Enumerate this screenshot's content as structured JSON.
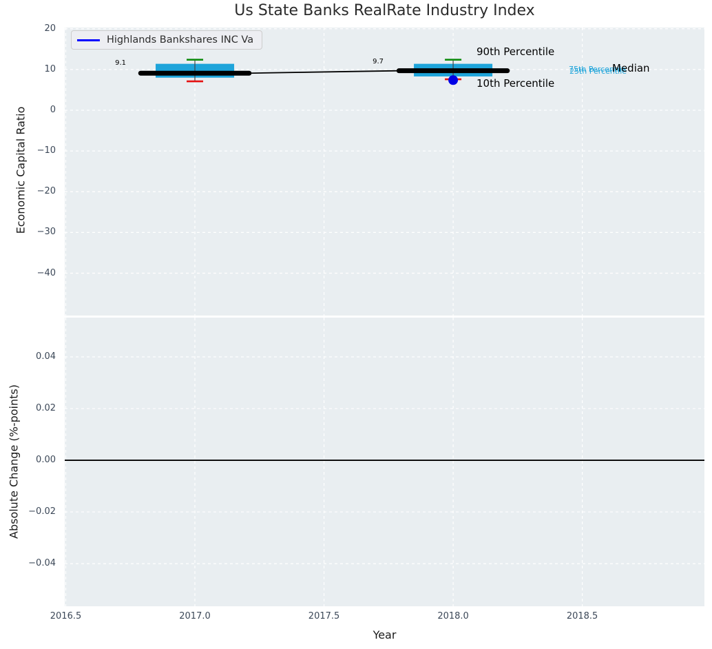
{
  "figure": {
    "title": "Us State Banks RealRate Industry Index"
  },
  "legend": {
    "label": "Highlands Bankshares INC Va"
  },
  "axes": {
    "top": {
      "ylabel": "Economic Capital Ratio",
      "yticks": [
        20,
        10,
        0,
        -10,
        -20,
        -30,
        -40
      ],
      "ytick_labels": [
        "20",
        "10",
        "0",
        "−10",
        "−20",
        "−30",
        "−40"
      ],
      "ylim": [
        -50.4,
        20.3
      ]
    },
    "bottom": {
      "ylabel": "Absolute Change (%-points)",
      "yticks": [
        0.04,
        0.02,
        0,
        -0.02,
        -0.04
      ],
      "ytick_labels": [
        "0.04",
        "0.02",
        "0.00",
        "−0.02",
        "−0.04"
      ],
      "ylim": [
        -0.0565,
        0.0552
      ]
    },
    "x": {
      "label": "Year",
      "ticks": [
        2016.5,
        2017,
        2017.5,
        2018,
        2018.5
      ],
      "tick_labels": [
        "2016.5",
        "2017.0",
        "2017.5",
        "2018.0",
        "2018.5"
      ],
      "xlim": [
        2016.496,
        2018.973
      ],
      "grid_x": [
        2016.5,
        2017,
        2017.5,
        2018,
        2018.5
      ]
    }
  },
  "annotations": {
    "p90": "90th Percentile",
    "p10": "10th Percentile",
    "p75": "75th Percentile",
    "p25": "25th Percentile",
    "median": "Median",
    "median_value_2017": "9.1",
    "median_value_2018": "9.7"
  },
  "colors": {
    "axes_bg": "#e9eef1",
    "grid": "#ffffff",
    "box_fill": "#1ea4da",
    "p90_cap": "#0f8c0f",
    "p10_cap": "#e51010",
    "whisker": "#444444",
    "median_line": "#000000",
    "company_marker": "#0000e6",
    "legend_line": "#0000ff",
    "cyan_label": "#1ea4da",
    "zero_line": "#000000",
    "tick_label": "#3b4757"
  },
  "chart_data": {
    "type": "boxplot",
    "title": "Us State Banks RealRate Industry Index",
    "xlabel": "Year",
    "ylabel": "Economic Capital Ratio",
    "ylabel_secondary": "Absolute Change (%-points)",
    "legend_position": "upper left",
    "grid": true,
    "x": [
      2017,
      2018
    ],
    "industry_percentiles": [
      {
        "year": 2017,
        "p10": 7.1,
        "p25": 8.0,
        "median": 9.1,
        "p75": 11.4,
        "p90": 12.4
      },
      {
        "year": 2018,
        "p10": 7.6,
        "p25": 8.3,
        "median": 9.7,
        "p75": 11.4,
        "p90": 12.4
      }
    ],
    "median_series": {
      "name": "Median",
      "x": [
        2017,
        2018
      ],
      "y": [
        9.1,
        9.7
      ]
    },
    "median_labels": [
      "9.1",
      "9.7"
    ],
    "company_series": {
      "name": "Highlands Bankshares INC Va",
      "x": [
        2018
      ],
      "y": [
        7.4
      ]
    },
    "bottom_panel": {
      "zero_line": 0,
      "series": []
    }
  }
}
